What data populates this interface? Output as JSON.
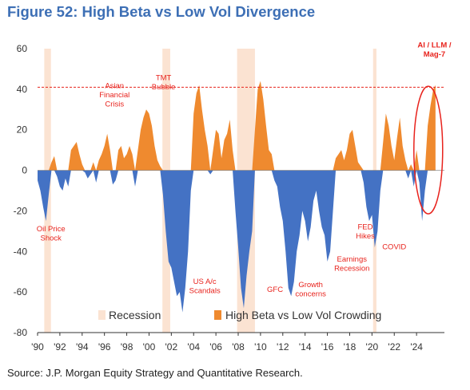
{
  "title": "Figure 52: High Beta vs Low Vol Divergence",
  "source": "Source: J.P. Morgan Equity Strategy and Quantitative Research.",
  "colors": {
    "positive": "#ef8a2f",
    "negative": "#4472c4",
    "recession": "#fbe3d2",
    "reference": "#e8231d",
    "title": "#3d6fb5"
  },
  "chart_data": {
    "type": "area",
    "xlim": [
      1990,
      2026.5
    ],
    "ylim": [
      -80,
      60
    ],
    "yticks": [
      60,
      40,
      20,
      0,
      -20,
      -40,
      -60,
      -80
    ],
    "xticks": [
      {
        "value": 1990,
        "label": "'90"
      },
      {
        "value": 1992,
        "label": "'92"
      },
      {
        "value": 1994,
        "label": "'94"
      },
      {
        "value": 1996,
        "label": "'96"
      },
      {
        "value": 1998,
        "label": "'98"
      },
      {
        "value": 2000,
        "label": "'00"
      },
      {
        "value": 2002,
        "label": "'02"
      },
      {
        "value": 2004,
        "label": "'04"
      },
      {
        "value": 2006,
        "label": "'06"
      },
      {
        "value": 2008,
        "label": "'08"
      },
      {
        "value": 2010,
        "label": "'10"
      },
      {
        "value": 2012,
        "label": "'12"
      },
      {
        "value": 2014,
        "label": "'14"
      },
      {
        "value": 2016,
        "label": "'16"
      },
      {
        "value": 2018,
        "label": "'18"
      },
      {
        "value": 2020,
        "label": "'20"
      },
      {
        "value": 2022,
        "label": "'22"
      },
      {
        "value": 2024,
        "label": "'24"
      }
    ],
    "recessions": [
      [
        1990.6,
        1991.2
      ],
      [
        2001.2,
        2001.9
      ],
      [
        2007.9,
        2009.5
      ],
      [
        2020.1,
        2020.4
      ]
    ],
    "reference_line": 41,
    "series": [
      {
        "name": "High Beta vs Low Vol Crowding",
        "points": [
          [
            1990.0,
            -5
          ],
          [
            1990.25,
            -10
          ],
          [
            1990.5,
            -18
          ],
          [
            1990.75,
            -25
          ],
          [
            1991.0,
            -12
          ],
          [
            1991.25,
            4
          ],
          [
            1991.5,
            7
          ],
          [
            1991.75,
            -3
          ],
          [
            1992.0,
            -8
          ],
          [
            1992.25,
            -10
          ],
          [
            1992.5,
            -4
          ],
          [
            1992.75,
            -8
          ],
          [
            1993.0,
            10
          ],
          [
            1993.25,
            12
          ],
          [
            1993.5,
            14
          ],
          [
            1993.75,
            8
          ],
          [
            1994.0,
            3
          ],
          [
            1994.25,
            -1
          ],
          [
            1994.5,
            -4
          ],
          [
            1994.75,
            -2
          ],
          [
            1995.0,
            4
          ],
          [
            1995.25,
            -6
          ],
          [
            1995.5,
            5
          ],
          [
            1995.75,
            8
          ],
          [
            1996.0,
            12
          ],
          [
            1996.25,
            18
          ],
          [
            1996.5,
            10
          ],
          [
            1996.75,
            -7
          ],
          [
            1997.0,
            -5
          ],
          [
            1997.25,
            10
          ],
          [
            1997.5,
            12
          ],
          [
            1997.75,
            6
          ],
          [
            1998.0,
            8
          ],
          [
            1998.25,
            12
          ],
          [
            1998.5,
            8
          ],
          [
            1998.75,
            -8
          ],
          [
            1999.0,
            10
          ],
          [
            1999.25,
            20
          ],
          [
            1999.5,
            26
          ],
          [
            1999.75,
            30
          ],
          [
            2000.0,
            28
          ],
          [
            2000.25,
            22
          ],
          [
            2000.5,
            12
          ],
          [
            2000.75,
            5
          ],
          [
            2001.0,
            2
          ],
          [
            2001.25,
            -12
          ],
          [
            2001.5,
            -30
          ],
          [
            2001.75,
            -45
          ],
          [
            2002.0,
            -48
          ],
          [
            2002.25,
            -55
          ],
          [
            2002.5,
            -62
          ],
          [
            2002.75,
            -60
          ],
          [
            2003.0,
            -70
          ],
          [
            2003.25,
            -58
          ],
          [
            2003.5,
            -40
          ],
          [
            2003.75,
            -10
          ],
          [
            2004.0,
            28
          ],
          [
            2004.25,
            38
          ],
          [
            2004.5,
            42
          ],
          [
            2004.75,
            30
          ],
          [
            2005.0,
            20
          ],
          [
            2005.25,
            12
          ],
          [
            2005.5,
            -2
          ],
          [
            2005.75,
            10
          ],
          [
            2006.0,
            20
          ],
          [
            2006.25,
            18
          ],
          [
            2006.5,
            6
          ],
          [
            2006.75,
            15
          ],
          [
            2007.0,
            18
          ],
          [
            2007.25,
            25
          ],
          [
            2007.5,
            10
          ],
          [
            2007.75,
            -20
          ],
          [
            2008.0,
            -38
          ],
          [
            2008.25,
            -58
          ],
          [
            2008.5,
            -68
          ],
          [
            2008.75,
            -52
          ],
          [
            2009.0,
            -40
          ],
          [
            2009.25,
            -30
          ],
          [
            2009.5,
            20
          ],
          [
            2009.75,
            40
          ],
          [
            2010.0,
            44
          ],
          [
            2010.25,
            35
          ],
          [
            2010.5,
            22
          ],
          [
            2010.75,
            10
          ],
          [
            2011.0,
            8
          ],
          [
            2011.25,
            -5
          ],
          [
            2011.5,
            -8
          ],
          [
            2011.75,
            -18
          ],
          [
            2012.0,
            -25
          ],
          [
            2012.25,
            -40
          ],
          [
            2012.5,
            -58
          ],
          [
            2012.75,
            -62
          ],
          [
            2013.0,
            -55
          ],
          [
            2013.25,
            -40
          ],
          [
            2013.5,
            -32
          ],
          [
            2013.75,
            -20
          ],
          [
            2014.0,
            -25
          ],
          [
            2014.25,
            -35
          ],
          [
            2014.5,
            -28
          ],
          [
            2014.75,
            -15
          ],
          [
            2015.0,
            -10
          ],
          [
            2015.25,
            -20
          ],
          [
            2015.5,
            -28
          ],
          [
            2015.75,
            -32
          ],
          [
            2016.0,
            -45
          ],
          [
            2016.25,
            -40
          ],
          [
            2016.5,
            -20
          ],
          [
            2016.75,
            6
          ],
          [
            2017.0,
            8
          ],
          [
            2017.25,
            10
          ],
          [
            2017.5,
            5
          ],
          [
            2017.75,
            10
          ],
          [
            2018.0,
            18
          ],
          [
            2018.25,
            20
          ],
          [
            2018.5,
            12
          ],
          [
            2018.75,
            4
          ],
          [
            2019.0,
            2
          ],
          [
            2019.25,
            -6
          ],
          [
            2019.5,
            -18
          ],
          [
            2019.75,
            -25
          ],
          [
            2020.0,
            -22
          ],
          [
            2020.25,
            -38
          ],
          [
            2020.5,
            -30
          ],
          [
            2020.75,
            -10
          ],
          [
            2021.0,
            14
          ],
          [
            2021.25,
            28
          ],
          [
            2021.5,
            22
          ],
          [
            2021.75,
            12
          ],
          [
            2022.0,
            5
          ],
          [
            2022.25,
            16
          ],
          [
            2022.5,
            26
          ],
          [
            2022.75,
            12
          ],
          [
            2023.0,
            5
          ],
          [
            2023.25,
            -4
          ],
          [
            2023.5,
            3
          ],
          [
            2023.75,
            -8
          ],
          [
            2024.0,
            10
          ],
          [
            2024.25,
            -6
          ],
          [
            2024.5,
            -25
          ],
          [
            2024.75,
            -10
          ],
          [
            2025.0,
            22
          ],
          [
            2025.25,
            32
          ],
          [
            2025.5,
            40
          ],
          [
            2025.7,
            42
          ]
        ]
      }
    ],
    "legend": {
      "position": "bottom",
      "items": [
        "Recession",
        "High Beta vs Low Vol Crowding"
      ]
    },
    "annotations": [
      {
        "text": [
          "Asian",
          "Financial",
          "Crisis"
        ],
        "x": 1996.9,
        "y": 40.5,
        "color": "#e8231d"
      },
      {
        "text": [
          "TMT",
          "Bubble"
        ],
        "x": 2001.3,
        "y": 44.5,
        "color": "#e8231d"
      },
      {
        "text": [
          "Oil Price",
          "Shock"
        ],
        "x": 1991.2,
        "y": -30,
        "color": "#e8231d"
      },
      {
        "text": [
          "US A/c",
          "Scandals"
        ],
        "x": 2005.0,
        "y": -56,
        "color": "#e8231d"
      },
      {
        "text": [
          "GFC"
        ],
        "x": 2011.3,
        "y": -60,
        "color": "#e8231d"
      },
      {
        "text": [
          "Growth",
          "concerns"
        ],
        "x": 2014.5,
        "y": -57.5,
        "color": "#e8231d"
      },
      {
        "text": [
          "Earnings",
          "Recession"
        ],
        "x": 2018.2,
        "y": -45,
        "color": "#e8231d"
      },
      {
        "text": [
          "FED",
          "Hikes"
        ],
        "x": 2019.4,
        "y": -29,
        "color": "#e8231d"
      },
      {
        "text": [
          "COVID"
        ],
        "x": 2022.0,
        "y": -39,
        "color": "#e8231d"
      },
      {
        "text": [
          "AI / LLM /",
          "Mag-7"
        ],
        "x": 2025.6,
        "y": 60.5,
        "color": "#e8231d",
        "bold": true
      }
    ]
  }
}
